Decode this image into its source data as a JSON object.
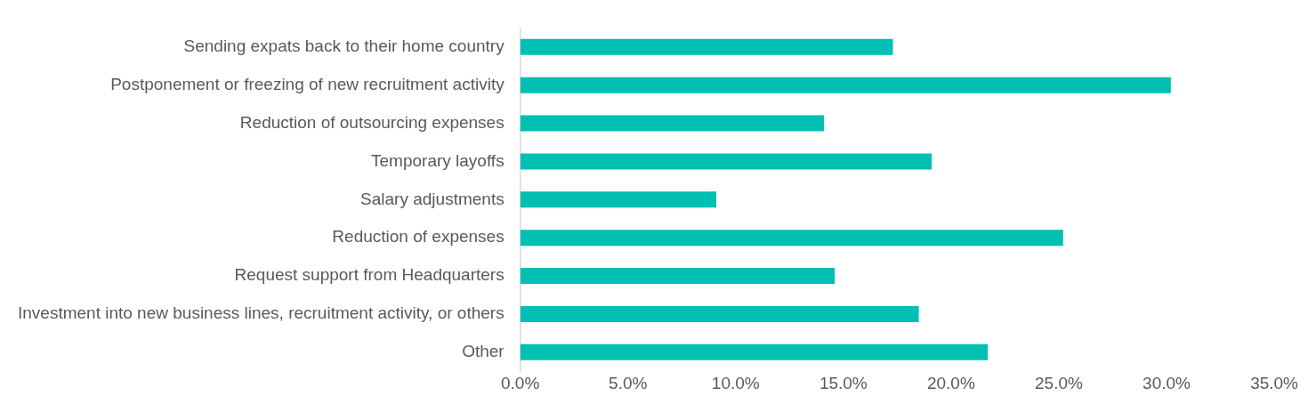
{
  "chart_data": {
    "type": "bar",
    "orientation": "horizontal",
    "categories": [
      "Sending expats back to their home country",
      "Postponement or freezing of new recruitment activity",
      "Reduction of outsourcing expenses",
      "Temporary layoffs",
      "Salary adjustments",
      "Reduction of expenses",
      "Request support from Headquarters",
      "Investment into new business lines, recruitment activity, or others",
      "Other"
    ],
    "values": [
      17.3,
      30.2,
      14.1,
      19.1,
      9.1,
      25.2,
      14.6,
      18.5,
      21.7
    ],
    "color": "#00bfb3",
    "xlim": [
      0,
      35
    ],
    "xticks": [
      {
        "value": 0,
        "label": "0.0%"
      },
      {
        "value": 5,
        "label": "5.0%"
      },
      {
        "value": 10,
        "label": "10.0%"
      },
      {
        "value": 15,
        "label": "15.0%"
      },
      {
        "value": 20,
        "label": "20.0%"
      },
      {
        "value": 25,
        "label": "25.0%"
      },
      {
        "value": 30,
        "label": "30.0%"
      },
      {
        "value": 35,
        "label": "35.0%"
      }
    ],
    "grid": false,
    "legend": false
  }
}
